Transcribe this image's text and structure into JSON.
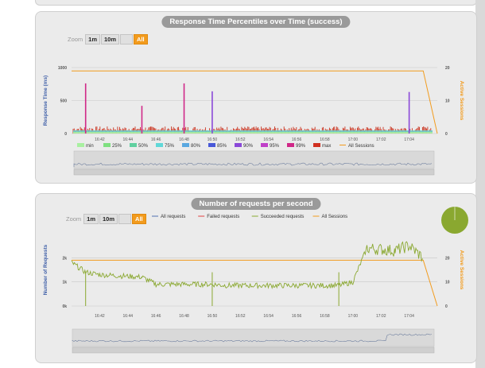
{
  "chart_data": [
    {
      "type": "line",
      "title": "Response Time Percentiles over Time (success)",
      "ylabel": "Response Time (ms)",
      "y2label": "Active Sessions",
      "zoom": {
        "label": "Zoom",
        "buttons": [
          "1m",
          "10m",
          "",
          "All"
        ],
        "active": "All"
      },
      "x_ticks": [
        "16:42",
        "16:44",
        "16:46",
        "16:48",
        "16:50",
        "16:52",
        "16:54",
        "16:56",
        "16:58",
        "17:00",
        "17:02",
        "17:04"
      ],
      "y_ticks": [
        "1000",
        "500",
        "0"
      ],
      "y2_ticks": [
        "20",
        "10",
        "0"
      ],
      "ylim": [
        0,
        1000
      ],
      "y2lim": [
        0,
        20
      ],
      "legend": [
        {
          "name": "min",
          "color": "#a8f0a0"
        },
        {
          "name": "25%",
          "color": "#7fe080"
        },
        {
          "name": "50%",
          "color": "#60d0a0"
        },
        {
          "name": "75%",
          "color": "#60d8d8"
        },
        {
          "name": "80%",
          "color": "#5aa8e0"
        },
        {
          "name": "85%",
          "color": "#4858d8"
        },
        {
          "name": "90%",
          "color": "#8a48d8"
        },
        {
          "name": "95%",
          "color": "#c040c8"
        },
        {
          "name": "99%",
          "color": "#d02888"
        },
        {
          "name": "max",
          "color": "#d03020"
        },
        {
          "name": "All Sessions",
          "color": "#f29b1d"
        }
      ],
      "spikes": [
        {
          "time": "16:41",
          "value": 760,
          "series": "99%"
        },
        {
          "time": "16:45",
          "value": 420,
          "series": "99%"
        },
        {
          "time": "16:48",
          "value": 760,
          "series": "99%"
        },
        {
          "time": "16:50",
          "value": 640,
          "series": "90%"
        },
        {
          "time": "17:04",
          "value": 630,
          "series": "90%"
        }
      ],
      "sessions": [
        {
          "time": "16:40",
          "value": 19
        },
        {
          "time": "17:05",
          "value": 19
        },
        {
          "time": "17:06",
          "value": 0
        }
      ],
      "colors": {
        "sessions": "#f29b1d",
        "max": "#c83420"
      }
    },
    {
      "type": "line",
      "title": "Number of requests per second",
      "ylabel": "Number of Requests",
      "y2label": "Active Sessions",
      "zoom": {
        "label": "Zoom",
        "buttons": [
          "1m",
          "10m",
          "",
          "All"
        ],
        "active": "All"
      },
      "x_ticks": [
        "16:42",
        "16:44",
        "16:46",
        "16:48",
        "16:50",
        "16:52",
        "16:54",
        "16:56",
        "16:58",
        "17:00",
        "17:02",
        "17:04"
      ],
      "y_ticks": [
        "2k",
        "1k",
        "0k"
      ],
      "y2_ticks": [
        "20",
        "10",
        "0"
      ],
      "ylim": [
        0,
        3000
      ],
      "y2lim": [
        0,
        30
      ],
      "legend": [
        {
          "name": "All requests",
          "color": "#5070b0"
        },
        {
          "name": "Failed requests",
          "color": "#e04040"
        },
        {
          "name": "Succeeded requests",
          "color": "#8aa830"
        },
        {
          "name": "All Sessions",
          "color": "#f29b1d"
        }
      ],
      "series": [
        {
          "name": "Succeeded requests",
          "points": [
            {
              "time": "16:40",
              "value": 1800
            },
            {
              "time": "16:41",
              "value": 1400
            },
            {
              "time": "16:42",
              "value": 1300
            },
            {
              "time": "16:45",
              "value": 1200
            },
            {
              "time": "16:46",
              "value": 900
            },
            {
              "time": "16:50",
              "value": 900
            },
            {
              "time": "16:51",
              "value": 850
            },
            {
              "time": "16:59",
              "value": 850
            },
            {
              "time": "17:00",
              "value": 1000
            },
            {
              "time": "17:01",
              "value": 2400
            },
            {
              "time": "17:03",
              "value": 2300
            },
            {
              "time": "17:04",
              "value": 2500
            },
            {
              "time": "17:05",
              "value": 2000
            }
          ]
        }
      ],
      "sessions": [
        {
          "time": "16:40",
          "value": 19
        },
        {
          "time": "17:05",
          "value": 19
        },
        {
          "time": "17:06",
          "value": 0
        }
      ],
      "pie": {
        "value": 100,
        "color": "#8aa830"
      }
    }
  ]
}
